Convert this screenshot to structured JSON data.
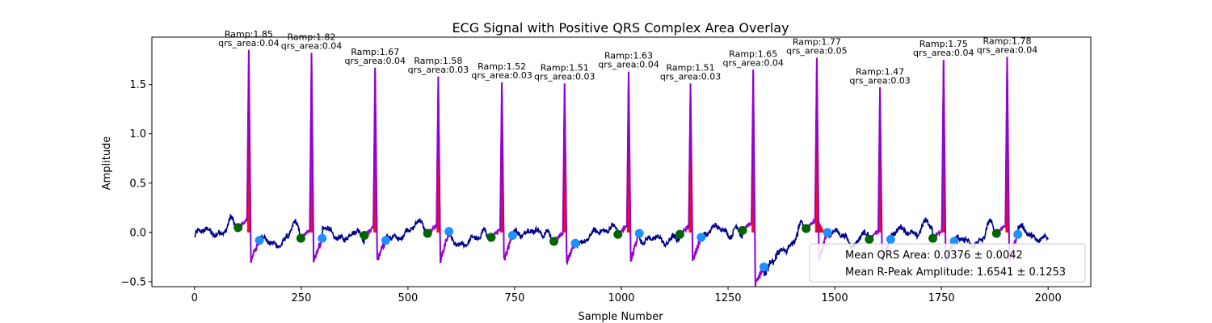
{
  "chart_data": {
    "type": "line",
    "title": "ECG Signal with Positive QRS Complex Area Overlay",
    "xlabel": "Sample Number",
    "ylabel": "Amplitude",
    "xlim": [
      -100,
      2100
    ],
    "ylim": [
      -0.55,
      1.98
    ],
    "x_ticks": [
      0,
      250,
      500,
      750,
      1000,
      1250,
      1500,
      1750,
      2000
    ],
    "y_ticks": [
      -0.5,
      0.0,
      0.5,
      1.0,
      1.5
    ],
    "x_tick_labels": [
      "0",
      "250",
      "500",
      "750",
      "1000",
      "1250",
      "1500",
      "1750",
      "2000"
    ],
    "y_tick_labels": [
      "−0.5",
      "0.0",
      "0.5",
      "1.0",
      "1.5"
    ],
    "grid": false,
    "beats": [
      {
        "r_sample": 127,
        "r_amp": 1.85,
        "q_sample": 102,
        "q_amp": 0.05,
        "s_sample": 152,
        "s_amp": -0.08,
        "label_line1": "Ramp:1.85",
        "label_line2": "qrs_area:0.04"
      },
      {
        "r_sample": 274,
        "r_amp": 1.82,
        "q_sample": 249,
        "q_amp": -0.06,
        "s_sample": 299,
        "s_amp": -0.06,
        "label_line1": "Ramp:1.82",
        "label_line2": "qrs_area:0.04"
      },
      {
        "r_sample": 423,
        "r_amp": 1.67,
        "q_sample": 398,
        "q_amp": -0.03,
        "s_sample": 448,
        "s_amp": -0.08,
        "label_line1": "Ramp:1.67",
        "label_line2": "qrs_area:0.04"
      },
      {
        "r_sample": 571,
        "r_amp": 1.58,
        "q_sample": 546,
        "q_amp": -0.01,
        "s_sample": 596,
        "s_amp": 0.01,
        "label_line1": "Ramp:1.58",
        "label_line2": "qrs_area:0.03"
      },
      {
        "r_sample": 720,
        "r_amp": 1.52,
        "q_sample": 695,
        "q_amp": -0.05,
        "s_sample": 745,
        "s_amp": -0.03,
        "label_line1": "Ramp:1.52",
        "label_line2": "qrs_area:0.03"
      },
      {
        "r_sample": 867,
        "r_amp": 1.51,
        "q_sample": 842,
        "q_amp": -0.09,
        "s_sample": 892,
        "s_amp": -0.11,
        "label_line1": "Ramp:1.51",
        "label_line2": "qrs_area:0.03"
      },
      {
        "r_sample": 1017,
        "r_amp": 1.63,
        "q_sample": 992,
        "q_amp": -0.02,
        "s_sample": 1042,
        "s_amp": -0.01,
        "label_line1": "Ramp:1.63",
        "label_line2": "qrs_area:0.04"
      },
      {
        "r_sample": 1162,
        "r_amp": 1.51,
        "q_sample": 1137,
        "q_amp": -0.02,
        "s_sample": 1187,
        "s_amp": -0.05,
        "label_line1": "Ramp:1.51",
        "label_line2": "qrs_area:0.03"
      },
      {
        "r_sample": 1309,
        "r_amp": 1.65,
        "q_sample": 1284,
        "q_amp": 0.02,
        "s_sample": 1334,
        "s_amp": -0.35,
        "label_line1": "Ramp:1.65",
        "label_line2": "qrs_area:0.04"
      },
      {
        "r_sample": 1458,
        "r_amp": 1.77,
        "q_sample": 1433,
        "q_amp": 0.04,
        "s_sample": 1483,
        "s_amp": 0.0,
        "label_line1": "Ramp:1.77",
        "label_line2": "qrs_area:0.05"
      },
      {
        "r_sample": 1606,
        "r_amp": 1.47,
        "q_sample": 1581,
        "q_amp": -0.07,
        "s_sample": 1631,
        "s_amp": -0.07,
        "label_line1": "Ramp:1.47",
        "label_line2": "qrs_area:0.03"
      },
      {
        "r_sample": 1755,
        "r_amp": 1.75,
        "q_sample": 1730,
        "q_amp": -0.06,
        "s_sample": 1780,
        "s_amp": -0.09,
        "label_line1": "Ramp:1.75",
        "label_line2": "qrs_area:0.04"
      },
      {
        "r_sample": 1904,
        "r_amp": 1.78,
        "q_sample": 1879,
        "q_amp": -0.01,
        "s_sample": 1929,
        "s_amp": -0.02,
        "label_line1": "Ramp:1.78",
        "label_line2": "qrs_area:0.04"
      }
    ],
    "signal_range": [
      0,
      2000
    ],
    "legend": {
      "placement": "lower-right",
      "entries": [
        "Mean QRS Area: 0.0376 ± 0.0042",
        "Mean R-Peak Amplitude: 1.6541 ± 0.1253"
      ]
    },
    "colors": {
      "signal": "#00008b",
      "qrs_segment": "#9400d3",
      "qrs_area_fill": "#ff0000",
      "q_marker": "#006400",
      "s_marker": "#1e90ff"
    }
  }
}
